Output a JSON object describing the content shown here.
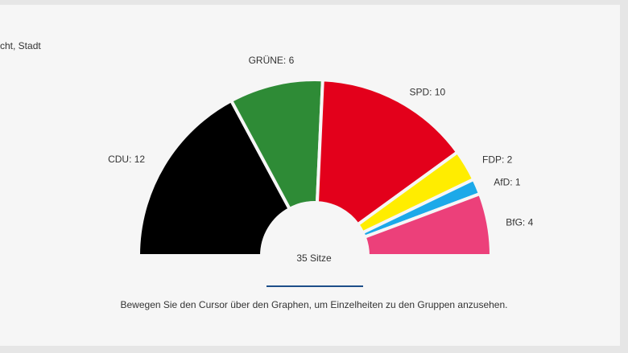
{
  "context_title": "cht, Stadt",
  "chart_data": {
    "type": "pie",
    "variant": "semicircle-parliament",
    "unit": "Sitze",
    "total_label": "35 Sitze",
    "total": 35,
    "parties": [
      {
        "name": "CDU",
        "seats": 12,
        "label": "CDU: 12",
        "color": "#000000"
      },
      {
        "name": "GRÜNE",
        "seats": 6,
        "label": "GRÜNE: 6",
        "color": "#2e8b36"
      },
      {
        "name": "SPD",
        "seats": 10,
        "label": "SPD: 10",
        "color": "#e3001b"
      },
      {
        "name": "FDP",
        "seats": 2,
        "label": "FDP: 2",
        "color": "#ffed00"
      },
      {
        "name": "AfD",
        "seats": 1,
        "label": "AfD: 1",
        "color": "#1ca9e9"
      },
      {
        "name": "BfG",
        "seats": 4,
        "label": "BfG: 4",
        "color": "#ec407a"
      }
    ]
  },
  "hint_text": "Bewegen Sie den Cursor über den Graphen, um Einzelheiten zu den Gruppen anzusehen."
}
